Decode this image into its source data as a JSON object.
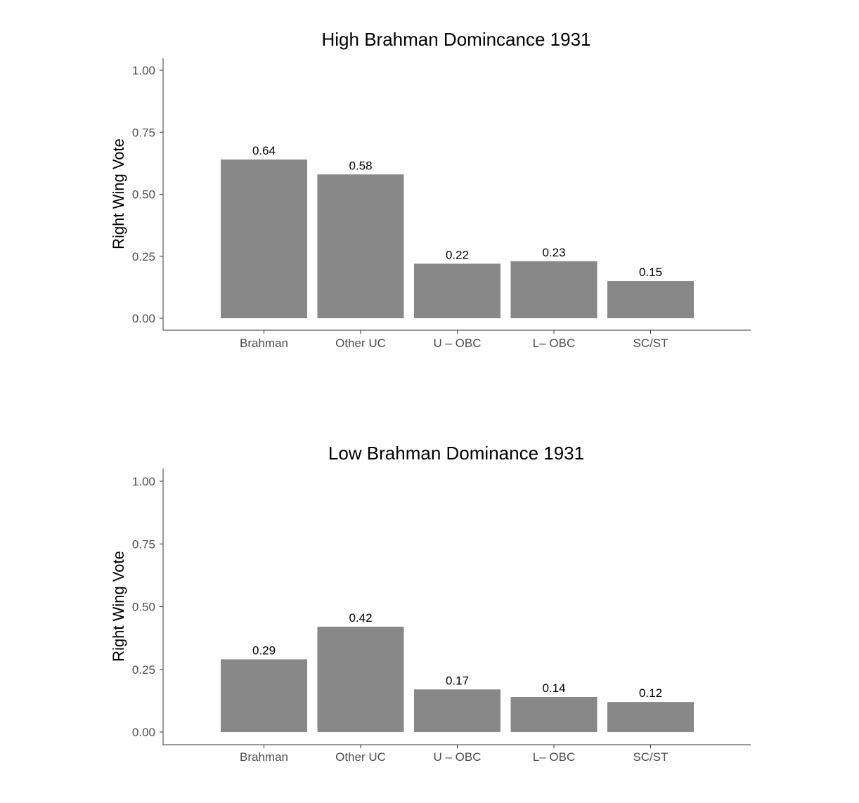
{
  "chart_data": [
    {
      "type": "bar",
      "title": "High Brahman Domincance 1931",
      "xlabel": "",
      "ylabel": "Right Wing Vote",
      "categories": [
        "Brahman",
        "Other UC",
        "U – OBC",
        "L– OBC",
        "SC/ST"
      ],
      "values": [
        0.64,
        0.58,
        0.22,
        0.23,
        0.15
      ],
      "data_labels": [
        "0.64",
        "0.58",
        "0.22",
        "0.23",
        "0.15"
      ],
      "yticks": [
        "0.00",
        "0.25",
        "0.50",
        "0.75",
        "1.00"
      ],
      "ylim": [
        0,
        1
      ],
      "grid": false,
      "legend": "none",
      "bar_color": "#888888"
    },
    {
      "type": "bar",
      "title": "Low Brahman Dominance 1931",
      "xlabel": "",
      "ylabel": "Right Wing Vote",
      "categories": [
        "Brahman",
        "Other UC",
        "U – OBC",
        "L– OBC",
        "SC/ST"
      ],
      "values": [
        0.29,
        0.42,
        0.17,
        0.14,
        0.12
      ],
      "data_labels": [
        "0.29",
        "0.42",
        "0.17",
        "0.14",
        "0.12"
      ],
      "yticks": [
        "0.00",
        "0.25",
        "0.50",
        "0.75",
        "1.00"
      ],
      "ylim": [
        0,
        1
      ],
      "grid": false,
      "legend": "none",
      "bar_color": "#888888"
    }
  ]
}
